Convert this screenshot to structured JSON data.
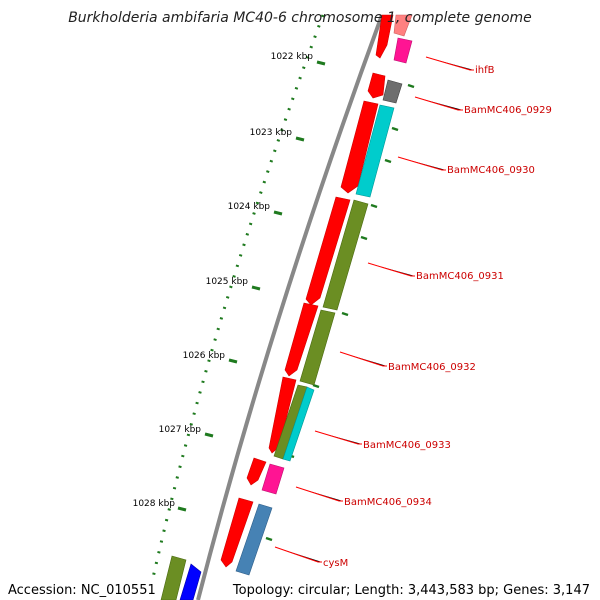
{
  "title": "Burkholderia ambifaria MC40-6 chromosome 1, complete genome",
  "accession": "Accession: NC_010551",
  "summary": "Topology: circular; Length: 3,443,583 bp; Genes: 3,147",
  "scale_labels": [
    "1022 kbp",
    "1023 kbp",
    "1024 kbp",
    "1025 kbp",
    "1026 kbp",
    "1027 kbp",
    "1028 kbp"
  ],
  "gene_labels": [
    "ihfB",
    "BamMC406_0929",
    "BamMC406_0930",
    "BamMC406_0931",
    "BamMC406_0932",
    "BamMC406_0933",
    "BamMC406_0934",
    "cysM"
  ],
  "colors": {
    "backbone": "#888888",
    "scale": "#1f7a1f",
    "cds_forward": "#ff0000",
    "label": "#cc0000",
    "cyan": "#00cccc",
    "olive": "#6b8e23",
    "magenta": "#ff1493",
    "gray": "#6e6e6e",
    "steelblue": "#4682b4",
    "blue": "#0000ff"
  }
}
